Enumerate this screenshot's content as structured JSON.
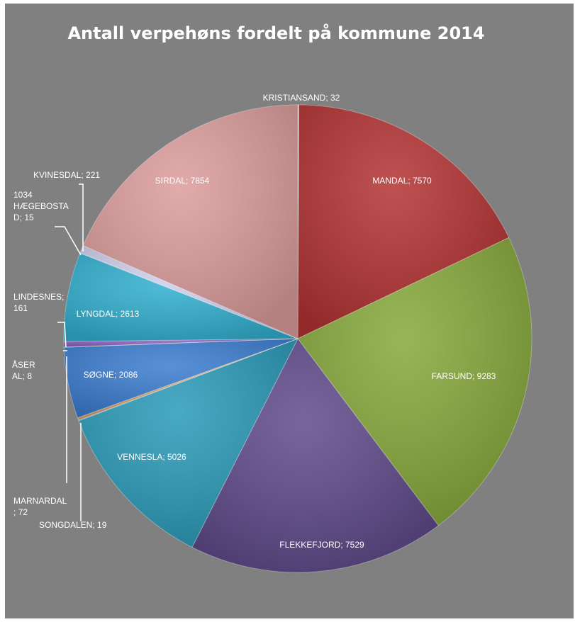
{
  "chart_data": {
    "type": "pie",
    "title": "Antall verpehøns fordelt på kommune 2014",
    "slices": [
      {
        "label": "KRISTIANSAND",
        "value": 32,
        "color": "#e8d5d5",
        "text": "KRISTIANSAND; 32"
      },
      {
        "label": "MANDAL",
        "value": 7570,
        "color": "#b33232",
        "text": "MANDAL; 7570"
      },
      {
        "label": "FARSUND",
        "value": 9283,
        "color": "#86a83a",
        "text": "FARSUND; 9283"
      },
      {
        "label": "FLEKKEFJORD",
        "value": 7529,
        "color": "#5f4a8a",
        "text": "FLEKKEFJORD; 7529"
      },
      {
        "label": "VENNESLA",
        "value": 5026,
        "color": "#2a9ab8",
        "text": "VENNESLA; 5026"
      },
      {
        "label": "SONGDALEN",
        "value": 19,
        "color": "#7aa0d0",
        "text": "SONGDALEN; 19"
      },
      {
        "label": "MARNARDAL",
        "value": 72,
        "color": "#d9a060",
        "text": "MARNARDAL; 72"
      },
      {
        "label": "SØGNE",
        "value": 2086,
        "color": "#3b7dd0",
        "text": "SØGNE; 2086"
      },
      {
        "label": "ÅSERAL",
        "value": 8,
        "color": "#9fd08a",
        "text": "ÅSER AL; 8"
      },
      {
        "label": "LINDESNES",
        "value": 161,
        "color": "#8a60c0",
        "text": "LINDESNES; 161"
      },
      {
        "label": "LYNGDAL",
        "value": 2613,
        "color": "#32b0d0",
        "text": "LYNGDAL; 2613"
      },
      {
        "label": "1034 HÆGEBOSTAD",
        "value": 15,
        "color": "#a0b8e0",
        "text": "1034 HÆGEBOSTA D; 15"
      },
      {
        "label": "KVINESDAL",
        "value": 221,
        "color": "#d0d0ee",
        "text": "KVINESDAL; 221"
      },
      {
        "label": "SIRDAL",
        "value": 7854,
        "color": "#dc9c9c",
        "text": "SIRDAL; 7854"
      }
    ]
  }
}
